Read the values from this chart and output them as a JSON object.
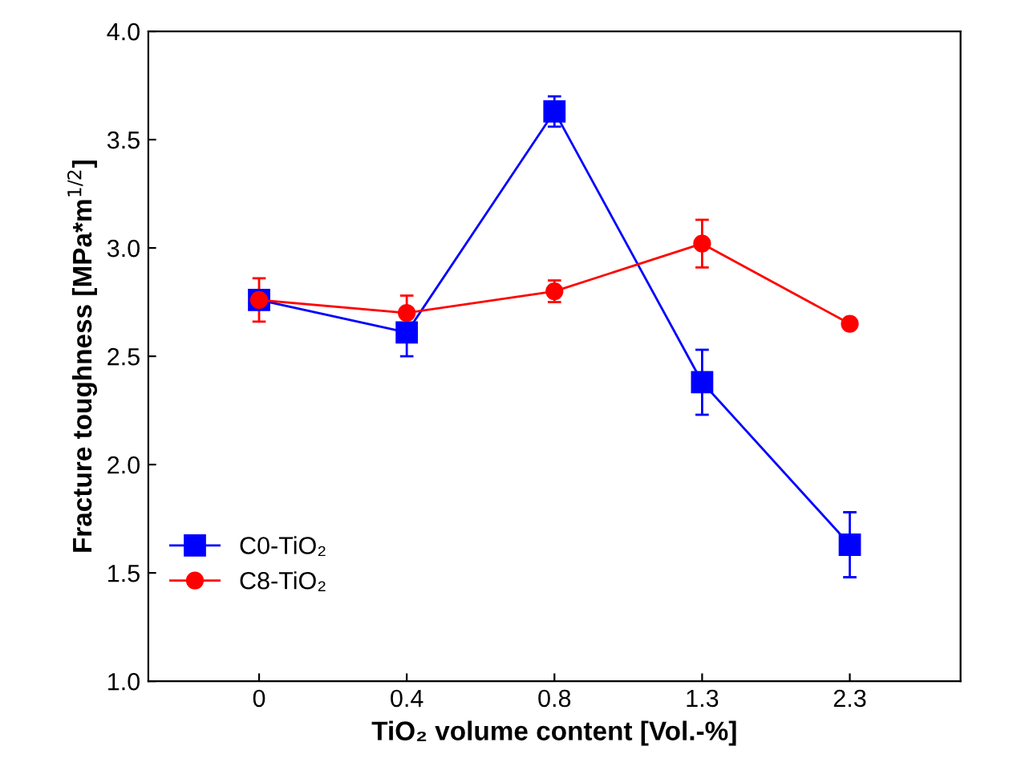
{
  "chart_data": {
    "type": "line",
    "xlabel": "TiO₂ volume content [Vol.-%]",
    "ylabel": "Fracture toughness [MPa*m$^{1/2}$]",
    "categories": [
      "0",
      "0.4",
      "0.8",
      "1.3",
      "2.3"
    ],
    "series": [
      {
        "name": "C0-TiO₂",
        "color": "#0000ff",
        "marker": "square",
        "values": [
          2.76,
          2.61,
          3.63,
          2.38,
          1.63
        ],
        "errors": [
          null,
          0.11,
          0.07,
          0.15,
          0.15
        ]
      },
      {
        "name": "C8-TiO₂",
        "color": "#ff0000",
        "marker": "circle",
        "values": [
          2.76,
          2.7,
          2.8,
          3.02,
          2.65
        ],
        "errors": [
          0.1,
          0.08,
          0.05,
          0.11,
          0.02
        ]
      }
    ],
    "ylim": [
      1.0,
      4.0
    ],
    "yticks": [
      {
        "value": 1.0,
        "label": "1.0"
      },
      {
        "value": 1.5,
        "label": "1.5"
      },
      {
        "value": 2.0,
        "label": "2.0"
      },
      {
        "value": 2.5,
        "label": "2.5"
      },
      {
        "value": 3.0,
        "label": "3.0"
      },
      {
        "value": 3.5,
        "label": "3.5"
      },
      {
        "value": 4.0,
        "label": "4.0"
      }
    ],
    "grid": false,
    "legend": "bottom left",
    "line_style": "solid"
  }
}
